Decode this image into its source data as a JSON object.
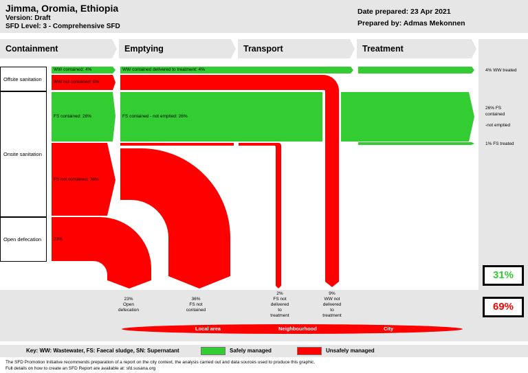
{
  "header": {
    "title": "Jimma, Oromia, Ethiopia",
    "version": "Version: Draft",
    "sfd_level": "SFD Level: 3 - Comprehensive SFD",
    "date_prepared": "Date prepared: 23 Apr 2021",
    "prepared_by": "Prepared by: Admas Mekonnen"
  },
  "stages": [
    "Containment",
    "Emptying",
    "Transport",
    "Treatment"
  ],
  "rows": {
    "offsite": "Offsite sanitation",
    "onsite": "Onsite sanitation",
    "open": "Open defecation"
  },
  "flows": {
    "ww_contained": "WW contained: 4%",
    "ww_contained_delivered": "WW contained delivered to treatment: 4%",
    "ww_not_contained": "WW not contained: 9%",
    "fs_contained": "FS contained: 26%",
    "fs_contained_not_emptied": "FS contained - not emptied: 26%",
    "fs_not_contained": "FS not contained: 36%",
    "open_defecation": "23%"
  },
  "right_labels": {
    "ww_treated": "4% WW treated",
    "fs_contained_1": "26% FS",
    "fs_contained_2": "contained",
    "fs_contained_3": "-not emptied",
    "fs_treated": "1% FS treated"
  },
  "totals": {
    "safe": "31%",
    "unsafe": "69%",
    "safe_color": "#33cc33",
    "unsafe_color": "#ff0000"
  },
  "bottom_labels": {
    "open_defecation": [
      "23%",
      "Open",
      "defecation"
    ],
    "fs_not_contained": [
      "36%",
      "FS not",
      "contained"
    ],
    "fs_not_delivered": [
      "2%",
      "FS not",
      "delivered",
      "to",
      "treatment"
    ],
    "ww_not_delivered": [
      "9%",
      "WW not",
      "delivered",
      "to",
      "treatment"
    ]
  },
  "areas": {
    "local": "Local area",
    "neighbourhood": "Neighbourhood",
    "city": "City"
  },
  "key": {
    "text": "Key: WW: Wastewater, FS: Faecal sludge, SN: Supernatant",
    "safe": "Safely managed",
    "unsafe": "Unsafely managed"
  },
  "footer": {
    "line1": "The SFD Promotion Initiative recommends preparation of a report on the city context, the analysis carried out and data sources used to produce this graphic.",
    "line2": "Full details on how to create an SFD Report are available at: sfd.susana.org"
  },
  "colors": {
    "green": "#33cc33",
    "red": "#ff0000",
    "grey": "#e6e6e6"
  }
}
